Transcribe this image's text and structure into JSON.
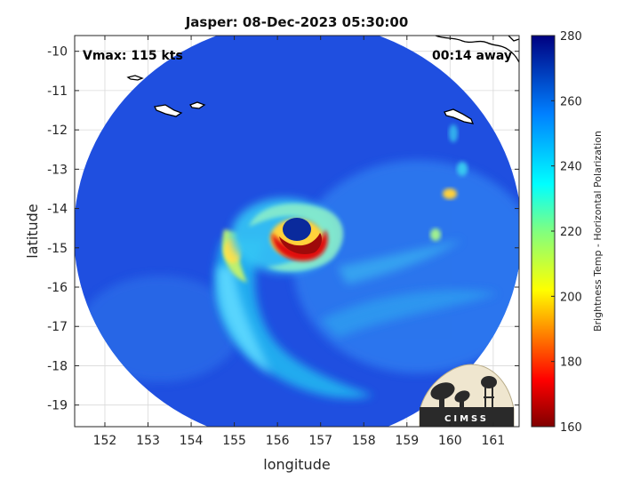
{
  "chart_data": {
    "type": "heatmap",
    "title": "Jasper: 08-Dec-2023 05:30:00",
    "xlabel": "longitude",
    "ylabel": "latitude",
    "xlim": [
      151.3,
      161.6
    ],
    "ylim": [
      -19.55,
      -9.6
    ],
    "xticks": [
      152,
      153,
      154,
      155,
      156,
      157,
      158,
      159,
      160,
      161
    ],
    "yticks": [
      -10,
      -11,
      -12,
      -13,
      -14,
      -15,
      -16,
      -17,
      -18,
      -19
    ],
    "grid": true,
    "annotations": {
      "vmax": "Vmax: 115 kts",
      "away": "00:14 away"
    },
    "colorbar": {
      "label": "Brightness Temp - Horizontal Polarization",
      "range": [
        160,
        280
      ],
      "ticks": [
        160,
        180,
        200,
        220,
        240,
        260,
        280
      ],
      "colormap": "jet"
    },
    "storm_center": {
      "lon": 156.4,
      "lat": -14.9
    },
    "eye_ring_min_temp": 170,
    "background_temp": 262
  },
  "logo": {
    "text": "CIMSS"
  },
  "colors": {
    "plot_bg": "#ffffff",
    "grid": "#d9d9d9",
    "axis": "#262626"
  }
}
